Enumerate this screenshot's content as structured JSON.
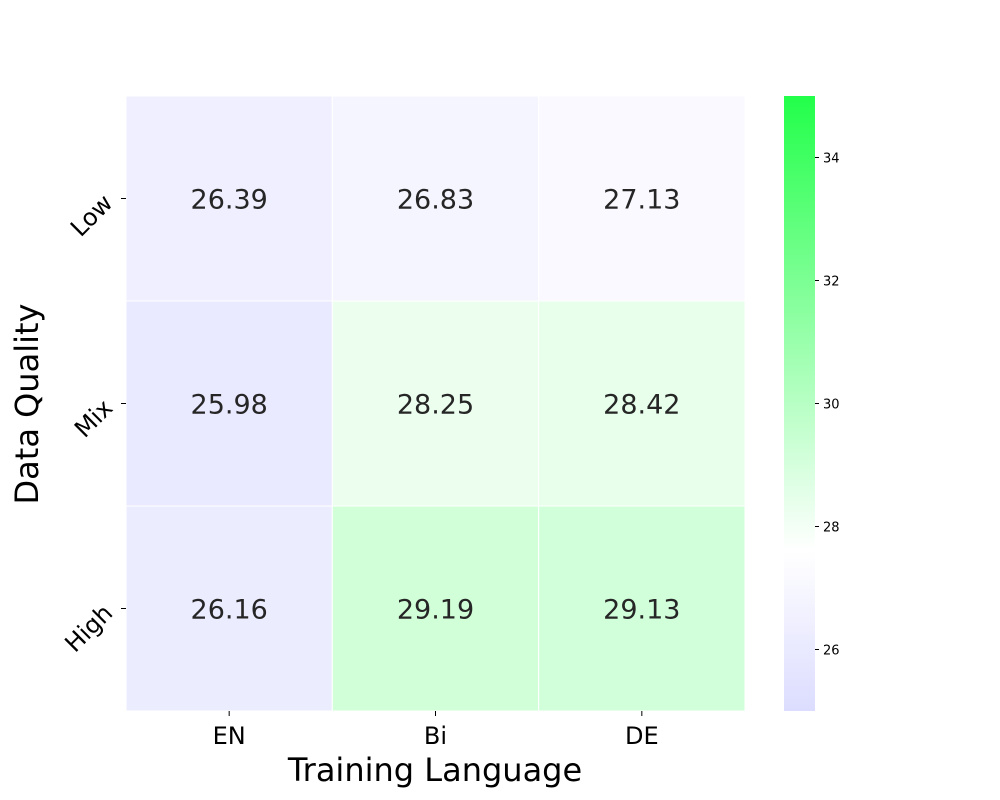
{
  "chart_data": {
    "type": "heatmap",
    "xlabel": "Training Language",
    "ylabel": "Data Quality",
    "x_categories": [
      "EN",
      "Bi",
      "DE"
    ],
    "y_categories": [
      "Low",
      "Mix",
      "High"
    ],
    "values": [
      [
        26.39,
        26.83,
        27.13
      ],
      [
        25.98,
        28.25,
        28.42
      ],
      [
        26.16,
        29.19,
        29.13
      ]
    ],
    "value_labels": [
      [
        "26.39",
        "26.83",
        "27.13"
      ],
      [
        "25.98",
        "28.25",
        "28.42"
      ],
      [
        "26.16",
        "29.19",
        "29.13"
      ]
    ],
    "colorbar": {
      "vmin": 25,
      "vmax": 35,
      "ticks": [
        26,
        28,
        30,
        32,
        34
      ],
      "tick_labels": [
        "26",
        "28",
        "30",
        "32",
        "34"
      ],
      "stops": [
        {
          "value": 25,
          "color": "#dcdcff"
        },
        {
          "value": 27.6,
          "color": "#ffffff"
        },
        {
          "value": 35,
          "color": "#22ff4a"
        }
      ]
    }
  }
}
